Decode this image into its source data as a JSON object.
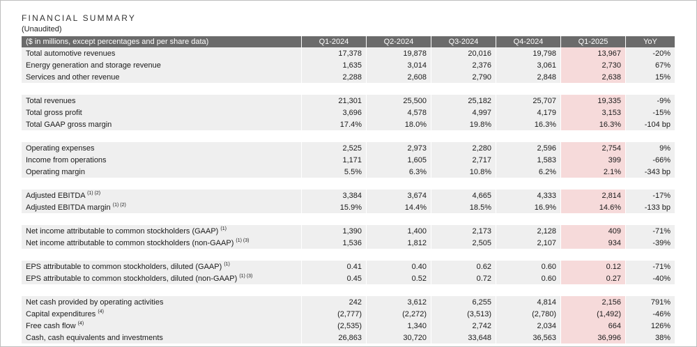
{
  "title": "FINANCIAL SUMMARY",
  "subtitle": "(Unaudited)",
  "header": {
    "label": "($ in millions, except percentages and per share data)",
    "columns": [
      "Q1-2024",
      "Q2-2024",
      "Q3-2024",
      "Q4-2024",
      "Q1-2025",
      "YoY"
    ]
  },
  "rows": [
    {
      "label": "Total automotive revenues",
      "note": "",
      "values": [
        "17,378",
        "19,878",
        "20,016",
        "19,798",
        "13,967",
        "-20%"
      ]
    },
    {
      "label": "Energy generation and storage revenue",
      "note": "",
      "values": [
        "1,635",
        "3,014",
        "2,376",
        "3,061",
        "2,730",
        "67%"
      ]
    },
    {
      "label": "Services and other revenue",
      "note": "",
      "values": [
        "2,288",
        "2,608",
        "2,790",
        "2,848",
        "2,638",
        "15%"
      ]
    },
    {
      "spacer": true
    },
    {
      "label": "Total revenues",
      "note": "",
      "values": [
        "21,301",
        "25,500",
        "25,182",
        "25,707",
        "19,335",
        "-9%"
      ]
    },
    {
      "label": "Total gross profit",
      "note": "",
      "values": [
        "3,696",
        "4,578",
        "4,997",
        "4,179",
        "3,153",
        "-15%"
      ]
    },
    {
      "label": "Total GAAP gross margin",
      "note": "",
      "values": [
        "17.4%",
        "18.0%",
        "19.8%",
        "16.3%",
        "16.3%",
        "-104 bp"
      ]
    },
    {
      "spacer": true
    },
    {
      "label": "Operating expenses",
      "note": "",
      "values": [
        "2,525",
        "2,973",
        "2,280",
        "2,596",
        "2,754",
        "9%"
      ]
    },
    {
      "label": "Income from operations",
      "note": "",
      "values": [
        "1,171",
        "1,605",
        "2,717",
        "1,583",
        "399",
        "-66%"
      ]
    },
    {
      "label": "Operating margin",
      "note": "",
      "values": [
        "5.5%",
        "6.3%",
        "10.8%",
        "6.2%",
        "2.1%",
        "-343 bp"
      ]
    },
    {
      "spacer": true
    },
    {
      "label": "Adjusted EBITDA",
      "note": "(1) (2)",
      "values": [
        "3,384",
        "3,674",
        "4,665",
        "4,333",
        "2,814",
        "-17%"
      ]
    },
    {
      "label": "Adjusted EBITDA margin",
      "note": "(1) (2)",
      "values": [
        "15.9%",
        "14.4%",
        "18.5%",
        "16.9%",
        "14.6%",
        "-133 bp"
      ]
    },
    {
      "spacer": true
    },
    {
      "label": "Net income attributable to common stockholders (GAAP)",
      "note": "(1)",
      "values": [
        "1,390",
        "1,400",
        "2,173",
        "2,128",
        "409",
        "-71%"
      ]
    },
    {
      "label": "Net income attributable to common stockholders (non-GAAP)",
      "note": "(1) (3)",
      "values": [
        "1,536",
        "1,812",
        "2,505",
        "2,107",
        "934",
        "-39%"
      ]
    },
    {
      "spacer": true
    },
    {
      "label": "EPS attributable to common stockholders, diluted (GAAP)",
      "note": "(1)",
      "values": [
        "0.41",
        "0.40",
        "0.62",
        "0.60",
        "0.12",
        "-71%"
      ]
    },
    {
      "label": "EPS attributable to common stockholders, diluted (non-GAAP)",
      "note": "(1) (3)",
      "values": [
        "0.45",
        "0.52",
        "0.72",
        "0.60",
        "0.27",
        "-40%"
      ]
    },
    {
      "spacer": true
    },
    {
      "label": "Net cash provided by operating activities",
      "note": "",
      "values": [
        "242",
        "3,612",
        "6,255",
        "4,814",
        "2,156",
        "791%"
      ]
    },
    {
      "label": "Capital expenditures",
      "note": "(4)",
      "values": [
        "(2,777)",
        "(2,272)",
        "(3,513)",
        "(2,780)",
        "(1,492)",
        "-46%"
      ]
    },
    {
      "label": "Free cash flow",
      "note": "(4)",
      "values": [
        "(2,535)",
        "1,340",
        "2,742",
        "2,034",
        "664",
        "126%"
      ]
    },
    {
      "label": "Cash, cash equivalents and investments",
      "note": "",
      "values": [
        "26,863",
        "30,720",
        "33,648",
        "36,563",
        "36,996",
        "38%"
      ]
    }
  ]
}
